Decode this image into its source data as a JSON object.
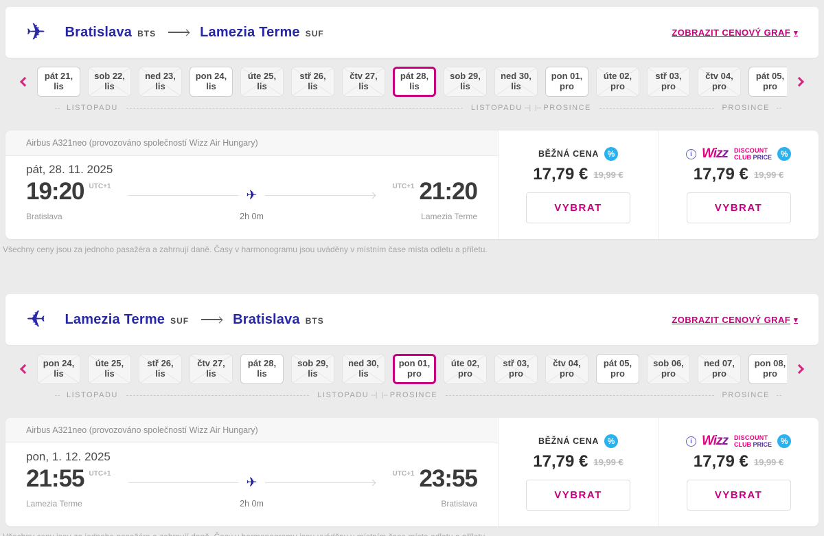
{
  "icons": {
    "plane": "✈",
    "caret_down": "▾",
    "percent": "%",
    "info": "i"
  },
  "colors": {
    "accent_pink": "#c6007e",
    "navy_blue": "#2727a5",
    "badge_blue": "#2ab1ee",
    "selected_border": "#c6007e"
  },
  "page": {
    "disclaimer": "Všechny ceny jsou za jednoho pasažéra a zahrnují daně. Časy v harmonogramu jsou uváděny v místním čase místa odletu a příletu."
  },
  "sections": [
    {
      "header": {
        "from": "Bratislava",
        "from_code": "BTS",
        "to": "Lamezia Terme",
        "to_code": "SUF",
        "graph_link": "ZOBRAZIT CENOVÝ GRAF"
      },
      "calendar": {
        "days": [
          {
            "day": "pát 21,",
            "month": "lis",
            "state": "available"
          },
          {
            "day": "sob 22,",
            "month": "lis",
            "state": "crossed"
          },
          {
            "day": "ned 23,",
            "month": "lis",
            "state": "crossed"
          },
          {
            "day": "pon 24,",
            "month": "lis",
            "state": "available"
          },
          {
            "day": "úte 25,",
            "month": "lis",
            "state": "crossed"
          },
          {
            "day": "stř 26,",
            "month": "lis",
            "state": "crossed"
          },
          {
            "day": "čtv 27,",
            "month": "lis",
            "state": "crossed"
          },
          {
            "day": "pát 28,",
            "month": "lis",
            "state": "selected"
          },
          {
            "day": "sob 29,",
            "month": "lis",
            "state": "crossed"
          },
          {
            "day": "ned 30,",
            "month": "lis",
            "state": "crossed"
          },
          {
            "day": "pon 01,",
            "month": "pro",
            "state": "available"
          },
          {
            "day": "úte 02,",
            "month": "pro",
            "state": "crossed"
          },
          {
            "day": "stř 03,",
            "month": "pro",
            "state": "crossed"
          },
          {
            "day": "čtv 04,",
            "month": "pro",
            "state": "crossed"
          },
          {
            "day": "pát 05,",
            "month": "pro",
            "state": "available"
          }
        ],
        "month_left": "LISTOPADU",
        "month_right": "PROSINCE",
        "conn_left": "--|",
        "conn_right": "|--"
      },
      "flight": {
        "aircraft": "Airbus A321neo (provozováno společností Wizz Air Hungary)",
        "date": "pát, 28. 11. 2025",
        "dep_time": "19:20",
        "dep_tz": "UTC+1",
        "dep_city": "Bratislava",
        "arr_time": "21:20",
        "arr_tz": "UTC+1",
        "arr_city": "Lamezia Terme",
        "duration": "2h 0m"
      },
      "prices": {
        "regular": {
          "label": "BĚŽNÁ CENA",
          "price": "17,79 €",
          "old_price": "19,99 €",
          "button": "VYBRAT"
        },
        "discount": {
          "brand": "Wizz",
          "line1": "DISCOUNT",
          "line2a": "CLUB",
          "line2b": "PRICE",
          "price": "17,79 €",
          "old_price": "19,99 €",
          "button": "VYBRAT"
        }
      }
    },
    {
      "header": {
        "from": "Lamezia Terme",
        "from_code": "SUF",
        "to": "Bratislava",
        "to_code": "BTS",
        "graph_link": "ZOBRAZIT CENOVÝ GRAF"
      },
      "calendar": {
        "days": [
          {
            "day": "pon 24,",
            "month": "lis",
            "state": "crossed"
          },
          {
            "day": "úte 25,",
            "month": "lis",
            "state": "crossed"
          },
          {
            "day": "stř 26,",
            "month": "lis",
            "state": "crossed"
          },
          {
            "day": "čtv 27,",
            "month": "lis",
            "state": "crossed"
          },
          {
            "day": "pát 28,",
            "month": "lis",
            "state": "available"
          },
          {
            "day": "sob 29,",
            "month": "lis",
            "state": "crossed"
          },
          {
            "day": "ned 30,",
            "month": "lis",
            "state": "crossed"
          },
          {
            "day": "pon 01,",
            "month": "pro",
            "state": "selected"
          },
          {
            "day": "úte 02,",
            "month": "pro",
            "state": "crossed"
          },
          {
            "day": "stř 03,",
            "month": "pro",
            "state": "crossed"
          },
          {
            "day": "čtv 04,",
            "month": "pro",
            "state": "crossed"
          },
          {
            "day": "pát 05,",
            "month": "pro",
            "state": "available"
          },
          {
            "day": "sob 06,",
            "month": "pro",
            "state": "crossed"
          },
          {
            "day": "ned 07,",
            "month": "pro",
            "state": "crossed"
          },
          {
            "day": "pon 08,",
            "month": "pro",
            "state": "available"
          }
        ],
        "month_left": "LISTOPADU",
        "month_right": "PROSINCE",
        "conn_left": "--|",
        "conn_right": "|--"
      },
      "flight": {
        "aircraft": "Airbus A321neo (provozováno společností Wizz Air Hungary)",
        "date": "pon, 1. 12. 2025",
        "dep_time": "21:55",
        "dep_tz": "UTC+1",
        "dep_city": "Lamezia Terme",
        "arr_time": "23:55",
        "arr_tz": "UTC+1",
        "arr_city": "Bratislava",
        "duration": "2h 0m"
      },
      "prices": {
        "regular": {
          "label": "BĚŽNÁ CENA",
          "price": "17,79 €",
          "old_price": "19,99 €",
          "button": "VYBRAT"
        },
        "discount": {
          "brand": "Wizz",
          "line1": "DISCOUNT",
          "line2a": "CLUB",
          "line2b": "PRICE",
          "price": "17,79 €",
          "old_price": "19,99 €",
          "button": "VYBRAT"
        }
      }
    }
  ]
}
